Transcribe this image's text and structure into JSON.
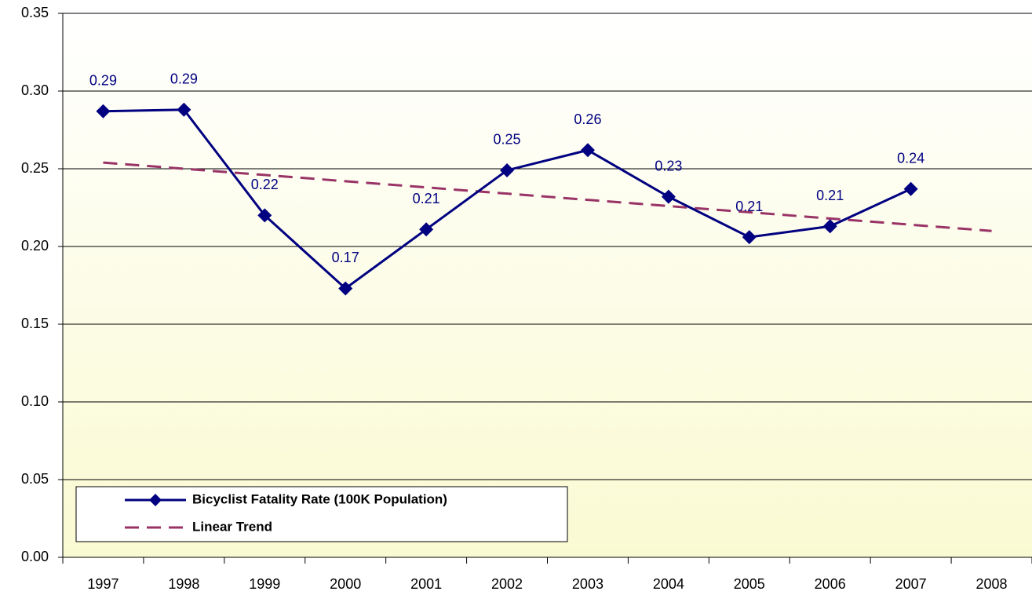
{
  "chart_data": {
    "type": "line",
    "categories": [
      "1997",
      "1998",
      "1999",
      "2000",
      "2001",
      "2002",
      "2003",
      "2004",
      "2005",
      "2006",
      "2007",
      "2008"
    ],
    "series": [
      {
        "name": "Bicyclist Fatality Rate (100K Population)",
        "color": "#000080",
        "marker": "diamond",
        "values": [
          0.287,
          0.288,
          0.22,
          0.173,
          0.211,
          0.249,
          0.262,
          0.232,
          0.206,
          0.213,
          0.237,
          null
        ],
        "value_labels": [
          "0.29",
          "0.29",
          "0.22",
          "0.17",
          "0.21",
          "0.25",
          "0.26",
          "0.23",
          "0.21",
          "0.21",
          "0.24",
          null
        ]
      },
      {
        "name": "Linear Trend",
        "color": "#993366",
        "dashed": true,
        "values": [
          0.254,
          0.25,
          0.246,
          0.242,
          0.238,
          0.234,
          0.23,
          0.226,
          0.222,
          0.218,
          0.214,
          0.21
        ]
      }
    ],
    "ylim": [
      0,
      0.35
    ],
    "yticks": [
      {
        "value": 0,
        "label": "0.00"
      },
      0.05,
      {
        "value": 0.1,
        "label": "0.10"
      },
      0.15,
      {
        "value": 0.2,
        "label": "0.20"
      },
      0.25,
      {
        "value": 0.3,
        "label": "0.30"
      },
      0.35
    ],
    "grid": true,
    "legend": "lower left"
  }
}
